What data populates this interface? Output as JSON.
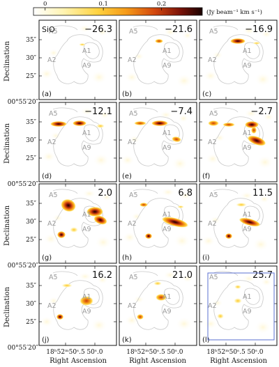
{
  "colorbar": {
    "ticks": [
      "0",
      "0.1",
      "0.2"
    ],
    "tick_values": [
      0,
      0.1,
      0.2
    ],
    "range": [
      -0.02,
      0.27
    ],
    "unit": "(Jy beam⁻¹ km s⁻¹)"
  },
  "molecule": "SiO",
  "axes": {
    "dec_ticks": [
      "35″",
      "30″",
      "25″"
    ],
    "dec_ticks_bottom_row": [
      "35″",
      "30″",
      "25″"
    ],
    "dec_origin": "00°55′20″",
    "ylabel": "Declination",
    "ra_ticks": [
      "18ʰ52ᵐ50ˢ.5",
      "50ˢ.0"
    ],
    "xlabel": "Right Ascension"
  },
  "sources": [
    "A5",
    "A2",
    "A1",
    "A9"
  ],
  "chart_data": {
    "type": "heatmap",
    "description_units": "velocity channels (km/s) of SiO integrated intensity",
    "panels": [
      {
        "label": "(a)",
        "velocity": "−26.3"
      },
      {
        "label": "(b)",
        "velocity": "−21.6"
      },
      {
        "label": "(c)",
        "velocity": "−16.9"
      },
      {
        "label": "(d)",
        "velocity": "−12.1"
      },
      {
        "label": "(e)",
        "velocity": "−7.4"
      },
      {
        "label": "(f)",
        "velocity": "−2.7"
      },
      {
        "label": "(g)",
        "velocity": "2.0"
      },
      {
        "label": "(h)",
        "velocity": "6.8"
      },
      {
        "label": "(i)",
        "velocity": "11.5"
      },
      {
        "label": "(j)",
        "velocity": "16.2"
      },
      {
        "label": "(k)",
        "velocity": "21.0"
      },
      {
        "label": "(l)",
        "velocity": "25.7"
      }
    ]
  },
  "colors": {
    "contour": "#c8c8c8",
    "source_label": "#9a9a9a",
    "box": "#5a6fd0"
  }
}
